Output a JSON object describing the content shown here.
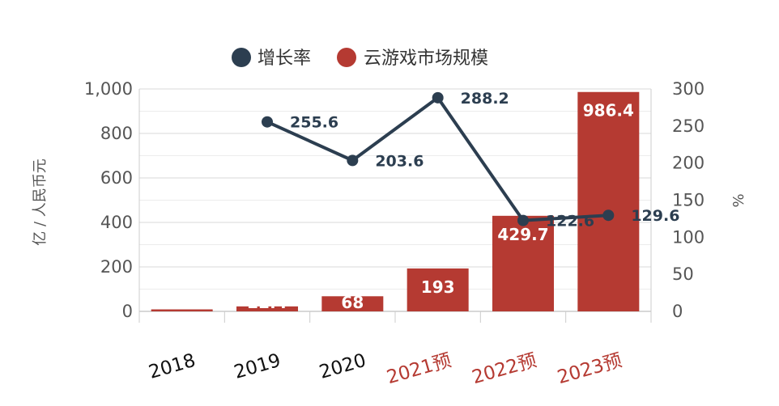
{
  "chart_data": {
    "type": "bar",
    "categories": [
      "2018",
      "2019",
      "2020",
      "2021预",
      "2022预",
      "2023预"
    ],
    "forecast_flags": [
      false,
      false,
      false,
      true,
      true,
      true
    ],
    "series": [
      {
        "name": "云游戏市场规模",
        "type": "bar",
        "axis": "left",
        "values": [
          9,
          22.4,
          68,
          193,
          429.7,
          986.4
        ],
        "labels": [
          "",
          "22.4",
          "68",
          "193",
          "429.7",
          "986.4"
        ]
      },
      {
        "name": "增长率",
        "type": "line",
        "axis": "right",
        "values": [
          null,
          255.6,
          203.6,
          288.2,
          122.6,
          129.6
        ],
        "labels": [
          "",
          "255.6",
          "203.6",
          "288.2",
          "122.6",
          "129.6"
        ]
      }
    ],
    "ylabel": "亿 / 人民币元",
    "y2label": "%",
    "ylim": [
      0,
      1000
    ],
    "y2lim": [
      0,
      300
    ],
    "yticks": [
      "0",
      "200",
      "400",
      "600",
      "800",
      "1,000"
    ],
    "y2ticks": [
      "0",
      "50",
      "100",
      "150",
      "200",
      "250",
      "300"
    ],
    "grid": true,
    "legend_position": "top-center",
    "colors": {
      "bar": "#b53a32",
      "line": "#2c3e50",
      "forecast_label": "#b53a32"
    }
  }
}
